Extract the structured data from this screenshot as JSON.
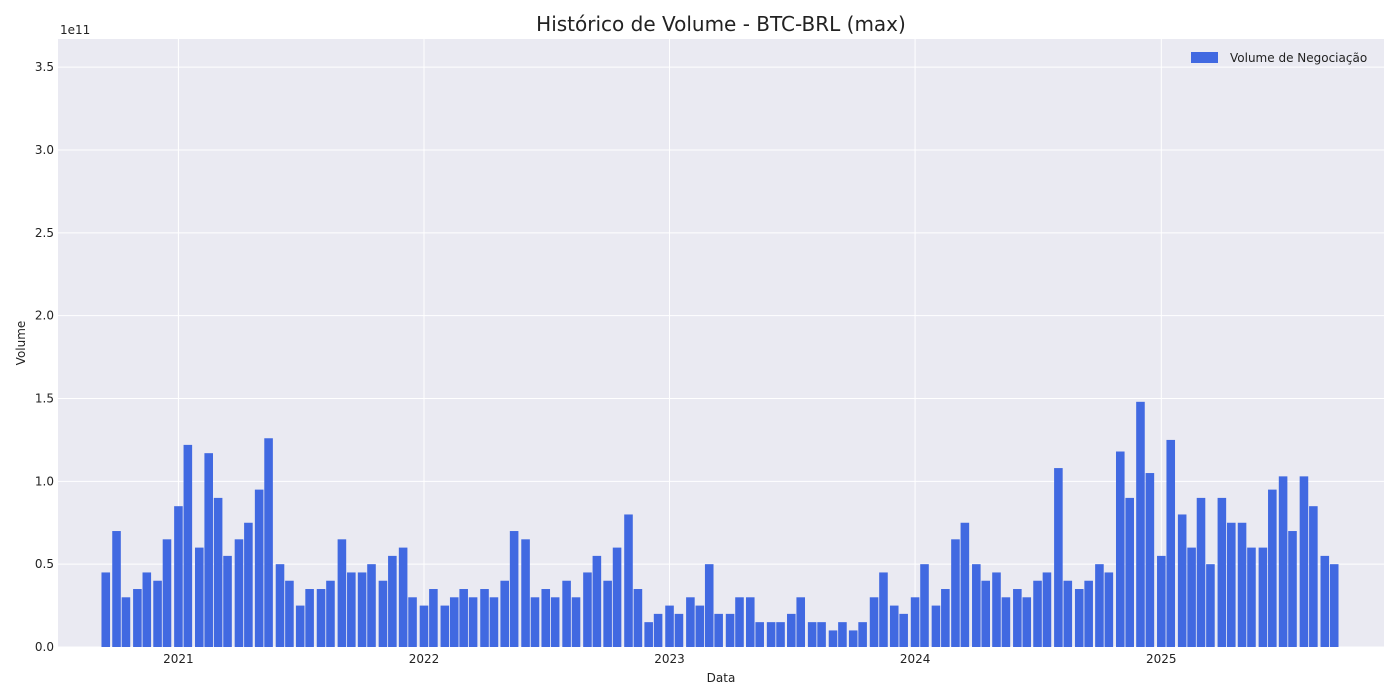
{
  "chart_data": {
    "type": "bar",
    "title": "Histórico de Volume - BTC-BRL (max)",
    "xlabel": "Data",
    "ylabel": "Volume",
    "y_offset_text": "1e11",
    "ylim": [
      0,
      367000000000.0
    ],
    "xlim": [
      "2020-07-06",
      "2025-11-28"
    ],
    "grid": true,
    "legend": {
      "placement": "top-right",
      "entries": [
        "Volume de Negociação"
      ]
    },
    "bar_color": "#4169e1",
    "background_color": "#eaeaf2",
    "grid_color": "#ffffff",
    "y_ticks": [
      0,
      50000000000.0,
      100000000000.0,
      150000000000.0,
      200000000000.0,
      250000000000.0,
      300000000000.0,
      350000000000.0
    ],
    "y_tick_labels": [
      "0.0",
      "0.5",
      "1.0",
      "1.5",
      "2.0",
      "2.5",
      "3.0",
      "3.5"
    ],
    "x_ticks": [
      "2021-01-01",
      "2022-01-01",
      "2023-01-01",
      "2024-01-01",
      "2025-01-01"
    ],
    "x_tick_labels": [
      "2021",
      "2022",
      "2023",
      "2024",
      "2025"
    ],
    "series": [
      {
        "name": "Volume de Negociação",
        "x": [
          "2020-09-15",
          "2020-10-01",
          "2020-10-15",
          "2020-11-01",
          "2020-11-15",
          "2020-12-01",
          "2020-12-15",
          "2021-01-01",
          "2021-01-15",
          "2021-02-01",
          "2021-02-15",
          "2021-03-01",
          "2021-03-15",
          "2021-04-01",
          "2021-04-15",
          "2021-05-01",
          "2021-05-15",
          "2021-06-01",
          "2021-06-15",
          "2021-07-01",
          "2021-07-15",
          "2021-08-01",
          "2021-08-15",
          "2021-09-01",
          "2021-09-15",
          "2021-10-01",
          "2021-10-15",
          "2021-11-01",
          "2021-11-15",
          "2021-12-01",
          "2021-12-15",
          "2022-01-01",
          "2022-01-15",
          "2022-02-01",
          "2022-02-15",
          "2022-03-01",
          "2022-03-15",
          "2022-04-01",
          "2022-04-15",
          "2022-05-01",
          "2022-05-15",
          "2022-06-01",
          "2022-06-15",
          "2022-07-01",
          "2022-07-15",
          "2022-08-01",
          "2022-08-15",
          "2022-09-01",
          "2022-09-15",
          "2022-10-01",
          "2022-10-15",
          "2022-11-01",
          "2022-11-15",
          "2022-12-01",
          "2022-12-15",
          "2023-01-01",
          "2023-01-15",
          "2023-02-01",
          "2023-02-15",
          "2023-03-01",
          "2023-03-15",
          "2023-04-01",
          "2023-04-15",
          "2023-05-01",
          "2023-05-15",
          "2023-06-01",
          "2023-06-15",
          "2023-07-01",
          "2023-07-15",
          "2023-08-01",
          "2023-08-15",
          "2023-09-01",
          "2023-09-15",
          "2023-10-01",
          "2023-10-15",
          "2023-11-01",
          "2023-11-15",
          "2023-12-01",
          "2023-12-15",
          "2024-01-01",
          "2024-01-15",
          "2024-02-01",
          "2024-02-15",
          "2024-03-01",
          "2024-03-15",
          "2024-04-01",
          "2024-04-15",
          "2024-05-01",
          "2024-05-15",
          "2024-06-01",
          "2024-06-15",
          "2024-07-01",
          "2024-07-15",
          "2024-08-01",
          "2024-08-15",
          "2024-09-01",
          "2024-09-15",
          "2024-10-01",
          "2024-10-15",
          "2024-11-01",
          "2024-11-15",
          "2024-12-01",
          "2024-12-15",
          "2025-01-01",
          "2025-01-15",
          "2025-02-01",
          "2025-02-15",
          "2025-03-01",
          "2025-03-15",
          "2025-04-01",
          "2025-04-15",
          "2025-05-01",
          "2025-05-15",
          "2025-06-01",
          "2025-06-15",
          "2025-07-01",
          "2025-07-15",
          "2025-08-01",
          "2025-08-15",
          "2025-09-01",
          "2025-09-15"
        ],
        "values": [
          45000000000.0,
          70000000000.0,
          30000000000.0,
          35000000000.0,
          45000000000.0,
          40000000000.0,
          65000000000.0,
          85000000000.0,
          122000000000.0,
          60000000000.0,
          117000000000.0,
          90000000000.0,
          55000000000.0,
          65000000000.0,
          75000000000.0,
          95000000000.0,
          126000000000.0,
          50000000000.0,
          40000000000.0,
          25000000000.0,
          35000000000.0,
          35000000000.0,
          40000000000.0,
          65000000000.0,
          45000000000.0,
          45000000000.0,
          50000000000.0,
          40000000000.0,
          55000000000.0,
          60000000000.0,
          30000000000.0,
          25000000000.0,
          35000000000.0,
          25000000000.0,
          30000000000.0,
          35000000000.0,
          30000000000.0,
          35000000000.0,
          30000000000.0,
          40000000000.0,
          70000000000.0,
          65000000000.0,
          30000000000.0,
          35000000000.0,
          30000000000.0,
          40000000000.0,
          30000000000.0,
          45000000000.0,
          55000000000.0,
          40000000000.0,
          60000000000.0,
          80000000000.0,
          35000000000.0,
          15000000000.0,
          20000000000.0,
          25000000000.0,
          20000000000.0,
          30000000000.0,
          25000000000.0,
          50000000000.0,
          20000000000.0,
          20000000000.0,
          30000000000.0,
          30000000000.0,
          15000000000.0,
          15000000000.0,
          15000000000.0,
          20000000000.0,
          30000000000.0,
          15000000000.0,
          15000000000.0,
          10000000000.0,
          15000000000.0,
          10000000000.0,
          15000000000.0,
          30000000000.0,
          45000000000.0,
          25000000000.0,
          20000000000.0,
          30000000000.0,
          50000000000.0,
          25000000000.0,
          35000000000.0,
          65000000000.0,
          75000000000.0,
          50000000000.0,
          40000000000.0,
          45000000000.0,
          30000000000.0,
          35000000000.0,
          30000000000.0,
          40000000000.0,
          45000000000.0,
          108000000000.0,
          40000000000.0,
          35000000000.0,
          40000000000.0,
          50000000000.0,
          45000000000.0,
          118000000000.0,
          90000000000.0,
          148000000000.0,
          105000000000.0,
          55000000000.0,
          125000000000.0,
          80000000000.0,
          60000000000.0,
          90000000000.0,
          50000000000.0,
          90000000000.0,
          75000000000.0,
          75000000000.0,
          60000000000.0,
          60000000000.0,
          95000000000.0,
          103000000000.0,
          70000000000.0,
          103000000000.0,
          85000000000.0,
          55000000000.0,
          50000000000.0
        ]
      }
    ]
  }
}
